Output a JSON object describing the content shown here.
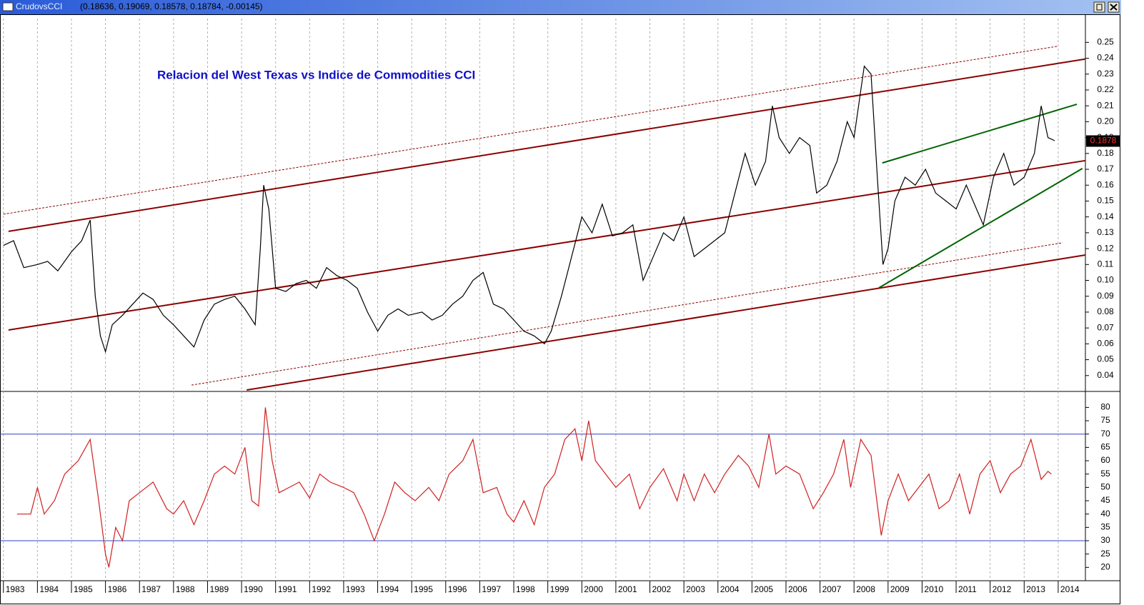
{
  "window": {
    "name": "CrudovsCCI",
    "values": "(0.18636, 0.19069, 0.18578, 0.18784, -0.00145)"
  },
  "chart_data": [
    {
      "type": "line",
      "title": "Relacion del West Texas vs Indice de Commodities CCI",
      "color": "#000000",
      "grid": true,
      "xlim": [
        1982.9,
        2014.8
      ],
      "ylim": [
        0.03,
        0.265
      ],
      "xticks": [
        1983,
        1984,
        1985,
        1986,
        1987,
        1988,
        1989,
        1990,
        1991,
        1992,
        1993,
        1994,
        1995,
        1996,
        1997,
        1998,
        1999,
        2000,
        2001,
        2002,
        2003,
        2004,
        2005,
        2006,
        2007,
        2008,
        2009,
        2010,
        2011,
        2012,
        2013,
        2014
      ],
      "yticks": [
        0.04,
        0.05,
        0.06,
        0.07,
        0.08,
        0.09,
        {
          "value": 0.1,
          "label": "0.10"
        },
        0.11,
        0.12,
        0.13,
        0.14,
        0.15,
        0.16,
        0.17,
        0.18,
        0.19,
        {
          "value": 0.2,
          "label": "0.20"
        },
        0.21,
        0.22,
        0.23,
        0.24,
        0.25
      ],
      "last_value": 0.1878,
      "x": [
        1983.0,
        1983.3,
        1983.6,
        1984.0,
        1984.3,
        1984.6,
        1985.0,
        1985.3,
        1985.55,
        1985.7,
        1985.85,
        1986.0,
        1986.2,
        1986.5,
        1986.8,
        1987.1,
        1987.4,
        1987.7,
        1988.0,
        1988.3,
        1988.6,
        1988.9,
        1989.2,
        1989.5,
        1989.8,
        1990.1,
        1990.4,
        1990.55,
        1990.65,
        1990.8,
        1991.0,
        1991.3,
        1991.6,
        1991.9,
        1992.2,
        1992.5,
        1992.8,
        1993.1,
        1993.4,
        1993.7,
        1994.0,
        1994.3,
        1994.6,
        1994.9,
        1995.3,
        1995.6,
        1995.9,
        1996.2,
        1996.5,
        1996.8,
        1997.1,
        1997.4,
        1997.7,
        1998.0,
        1998.3,
        1998.6,
        1998.9,
        1999.1,
        1999.4,
        1999.7,
        2000.0,
        2000.3,
        2000.6,
        2000.9,
        2001.2,
        2001.5,
        2001.8,
        2002.1,
        2002.4,
        2002.7,
        2003.0,
        2003.3,
        2003.6,
        2003.9,
        2004.2,
        2004.5,
        2004.8,
        2005.1,
        2005.4,
        2005.6,
        2005.8,
        2006.1,
        2006.4,
        2006.7,
        2006.9,
        2007.2,
        2007.5,
        2007.8,
        2008.0,
        2008.3,
        2008.5,
        2008.7,
        2008.85,
        2009.0,
        2009.2,
        2009.5,
        2009.8,
        2010.1,
        2010.4,
        2010.7,
        2011.0,
        2011.3,
        2011.6,
        2011.8,
        2012.1,
        2012.4,
        2012.7,
        2013.0,
        2013.3,
        2013.5,
        2013.7,
        2013.9
      ],
      "values": [
        0.122,
        0.125,
        0.108,
        0.11,
        0.112,
        0.106,
        0.118,
        0.125,
        0.138,
        0.09,
        0.065,
        0.055,
        0.072,
        0.078,
        0.085,
        0.092,
        0.088,
        0.078,
        0.072,
        0.065,
        0.058,
        0.075,
        0.085,
        0.088,
        0.09,
        0.082,
        0.072,
        0.12,
        0.16,
        0.145,
        0.095,
        0.093,
        0.098,
        0.1,
        0.095,
        0.108,
        0.103,
        0.1,
        0.095,
        0.08,
        0.068,
        0.078,
        0.082,
        0.078,
        0.08,
        0.075,
        0.078,
        0.085,
        0.09,
        0.1,
        0.105,
        0.085,
        0.082,
        0.075,
        0.068,
        0.065,
        0.06,
        0.068,
        0.09,
        0.115,
        0.14,
        0.13,
        0.148,
        0.128,
        0.13,
        0.135,
        0.1,
        0.115,
        0.13,
        0.125,
        0.14,
        0.115,
        0.12,
        0.125,
        0.13,
        0.155,
        0.18,
        0.16,
        0.175,
        0.21,
        0.19,
        0.18,
        0.19,
        0.185,
        0.155,
        0.16,
        0.175,
        0.2,
        0.19,
        0.235,
        0.23,
        0.16,
        0.11,
        0.12,
        0.15,
        0.165,
        0.16,
        0.17,
        0.155,
        0.15,
        0.145,
        0.16,
        0.145,
        0.135,
        0.165,
        0.18,
        0.16,
        0.165,
        0.18,
        0.21,
        0.19,
        0.188
      ],
      "lines": [
        {
          "color": "#8b0000",
          "style": "solid",
          "x": [
            1983.15,
            2014.8
          ],
          "y": [
            0.1309,
            0.2395
          ]
        },
        {
          "color": "#8b0000",
          "style": "solid",
          "x": [
            1983.15,
            2014.8
          ],
          "y": [
            0.0687,
            0.1755
          ]
        },
        {
          "color": "#8b0000",
          "style": "solid",
          "x": [
            1990.15,
            2014.8
          ],
          "y": [
            0.0309,
            0.116
          ]
        },
        {
          "color": "#8b0000",
          "style": "dotted",
          "x": [
            1983.0,
            2014.0
          ],
          "y": [
            0.1417,
            0.2476
          ]
        },
        {
          "color": "#8b0000",
          "style": "dotted",
          "x": [
            1988.53,
            2014.13
          ],
          "y": [
            0.034,
            0.1237
          ]
        },
        {
          "color": "#006400",
          "style": "solid",
          "x": [
            2008.83,
            2014.55
          ],
          "y": [
            0.174,
            0.211
          ]
        },
        {
          "color": "#006400",
          "style": "solid",
          "x": [
            2008.73,
            2014.71
          ],
          "y": [
            0.0953,
            0.1705
          ]
        }
      ]
    },
    {
      "type": "line",
      "color": "#d02020",
      "grid": true,
      "xlim": [
        1982.9,
        2014.8
      ],
      "ylim": [
        15,
        86
      ],
      "xticks": [
        1983,
        1984,
        1985,
        1986,
        1987,
        1988,
        1989,
        1990,
        1991,
        1992,
        1993,
        1994,
        1995,
        1996,
        1997,
        1998,
        1999,
        2000,
        2001,
        2002,
        2003,
        2004,
        2005,
        2006,
        2007,
        2008,
        2009,
        2010,
        2011,
        2012,
        2013,
        2014
      ],
      "yticks": [
        20,
        25,
        30,
        35,
        40,
        45,
        50,
        55,
        60,
        65,
        70,
        75,
        80
      ],
      "hlines": [
        70,
        30
      ],
      "hline_color": "#3040c0",
      "x": [
        1983.4,
        1983.8,
        1984.0,
        1984.2,
        1984.5,
        1984.8,
        1985.2,
        1985.55,
        1985.8,
        1986.0,
        1986.1,
        1986.3,
        1986.5,
        1986.7,
        1987.0,
        1987.4,
        1987.8,
        1988.0,
        1988.3,
        1988.6,
        1988.9,
        1989.2,
        1989.5,
        1989.8,
        1990.1,
        1990.3,
        1990.5,
        1990.7,
        1990.9,
        1991.1,
        1991.4,
        1991.7,
        1992.0,
        1992.3,
        1992.6,
        1993.0,
        1993.3,
        1993.6,
        1993.9,
        1994.2,
        1994.5,
        1994.8,
        1995.1,
        1995.5,
        1995.8,
        1996.1,
        1996.5,
        1996.8,
        1997.1,
        1997.5,
        1997.8,
        1998.0,
        1998.3,
        1998.6,
        1998.9,
        1999.2,
        1999.5,
        1999.8,
        2000.0,
        2000.2,
        2000.4,
        2000.7,
        2001.0,
        2001.4,
        2001.7,
        2002.0,
        2002.4,
        2002.8,
        2003.0,
        2003.3,
        2003.6,
        2003.9,
        2004.2,
        2004.6,
        2004.9,
        2005.2,
        2005.5,
        2005.7,
        2006.0,
        2006.4,
        2006.8,
        2007.1,
        2007.4,
        2007.7,
        2007.9,
        2008.2,
        2008.5,
        2008.8,
        2009.0,
        2009.3,
        2009.6,
        2009.9,
        2010.2,
        2010.5,
        2010.8,
        2011.1,
        2011.4,
        2011.7,
        2012.0,
        2012.3,
        2012.6,
        2012.9,
        2013.2,
        2013.5,
        2013.7,
        2013.8
      ],
      "values": [
        40,
        40,
        50,
        40,
        45,
        55,
        60,
        68,
        45,
        25,
        20,
        35,
        30,
        45,
        48,
        52,
        42,
        40,
        45,
        36,
        45,
        55,
        58,
        55,
        65,
        45,
        43,
        80,
        60,
        48,
        50,
        52,
        46,
        55,
        52,
        50,
        48,
        40,
        30,
        40,
        52,
        48,
        45,
        50,
        45,
        55,
        60,
        68,
        48,
        50,
        40,
        37,
        45,
        36,
        50,
        55,
        68,
        72,
        60,
        75,
        60,
        55,
        50,
        55,
        42,
        50,
        57,
        45,
        55,
        45,
        55,
        48,
        55,
        62,
        58,
        50,
        70,
        55,
        58,
        55,
        42,
        48,
        55,
        68,
        50,
        68,
        62,
        32,
        45,
        55,
        45,
        50,
        55,
        42,
        45,
        55,
        40,
        55,
        60,
        48,
        55,
        58,
        68,
        53,
        56,
        55
      ]
    }
  ]
}
